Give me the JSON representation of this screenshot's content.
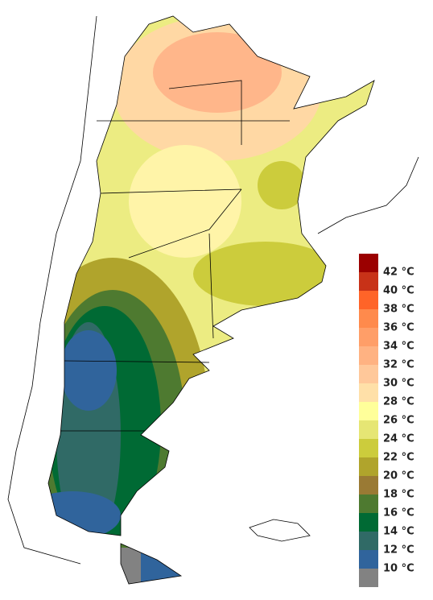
{
  "legend": {
    "colors": [
      "#9b0000",
      "#c83218",
      "#ff6428",
      "#ff8a4c",
      "#ff9e68",
      "#ffb282",
      "#ffc89a",
      "#ffe0a8",
      "#ffff9a",
      "#e6e674",
      "#cccc3c",
      "#b0a42c",
      "#9a7a34",
      "#4e7a30",
      "#006a34",
      "#306a66",
      "#30649c",
      "#828282"
    ],
    "labels": [
      "42 °C",
      "40 °C",
      "38 °C",
      "36 °C",
      "34 °C",
      "32 °C",
      "30 °C",
      "28 °C",
      "26 °C",
      "24 °C",
      "22 °C",
      "20 °C",
      "18 °C",
      "16 °C",
      "14 °C",
      "12 °C",
      "10 °C"
    ]
  }
}
